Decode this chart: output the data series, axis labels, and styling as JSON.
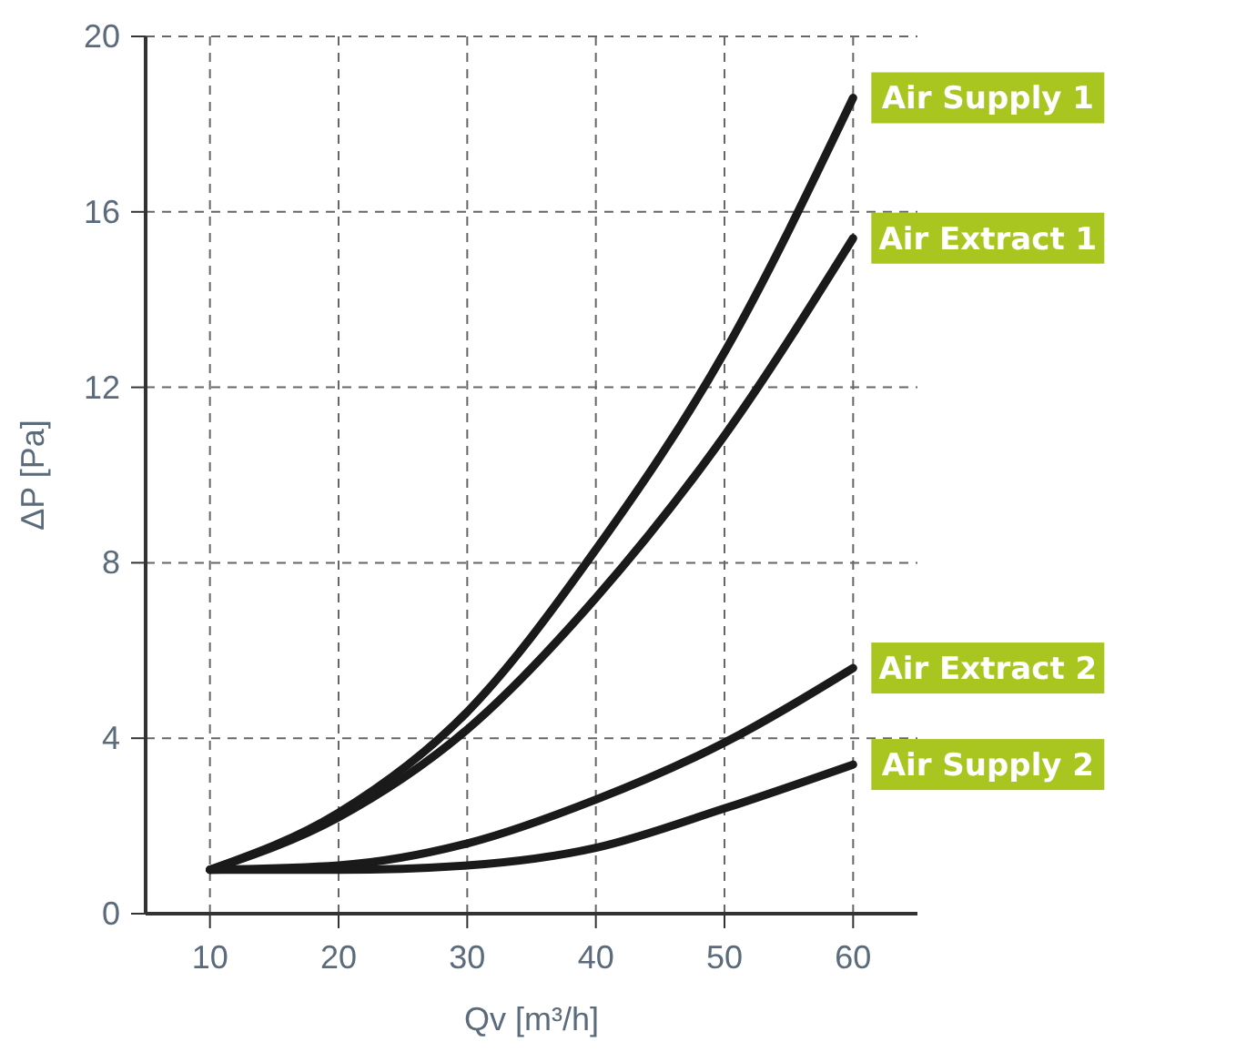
{
  "chart_data": {
    "type": "line",
    "xlabel": "Qv [m³/h]",
    "ylabel": "ΔP [Pa]",
    "xlim": [
      5,
      65
    ],
    "ylim": [
      0,
      20
    ],
    "xticks": [
      10,
      20,
      30,
      40,
      50,
      60
    ],
    "yticks": [
      0,
      4,
      8,
      12,
      16,
      20
    ],
    "grid": true,
    "line_style": "solid",
    "marker": "none",
    "x": [
      10,
      20,
      30,
      40,
      50,
      60
    ],
    "series": [
      {
        "name": "Air Supply 1",
        "color": "#1a1a1a",
        "values": [
          1,
          2.3,
          4.6,
          8.3,
          12.8,
          18.6
        ]
      },
      {
        "name": "Air Extract 1",
        "color": "#1a1a1a",
        "values": [
          1,
          2.2,
          4.2,
          7.2,
          10.9,
          15.4
        ]
      },
      {
        "name": "Air Extract 2",
        "color": "#1a1a1a",
        "values": [
          1,
          1.1,
          1.6,
          2.6,
          3.9,
          5.6
        ]
      },
      {
        "name": "Air Supply 2",
        "color": "#1a1a1a",
        "values": [
          1,
          1.0,
          1.1,
          1.5,
          2.4,
          3.4
        ]
      }
    ]
  }
}
